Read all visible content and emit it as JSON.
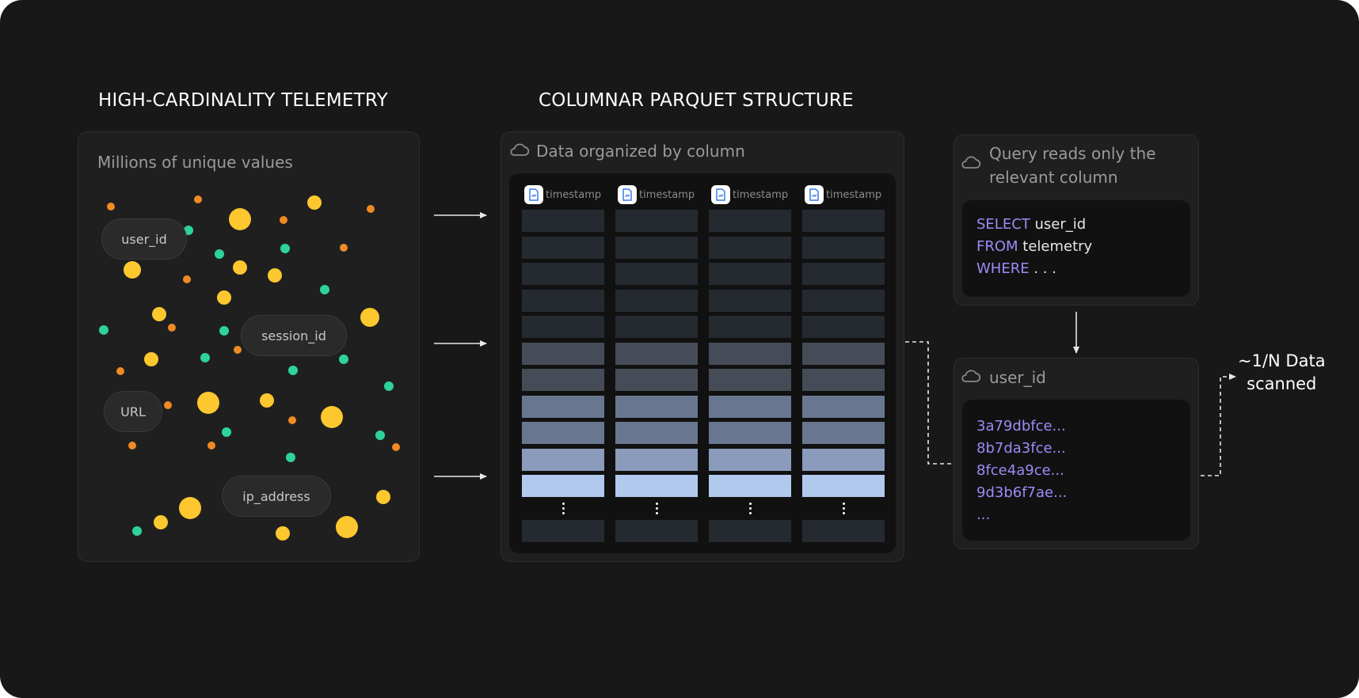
{
  "headings": {
    "left": "HIGH-CARDINALITY TELEMETRY",
    "middle": "COLUMNAR PARQUET STRUCTURE"
  },
  "telemetry_panel": {
    "title": "Millions of unique values",
    "fields": [
      "user_id",
      "session_id",
      "URL",
      "ip_address"
    ]
  },
  "parquet_panel": {
    "title": "Data organized by column",
    "icon": "cloud-icon",
    "columns": [
      "timestamp",
      "timestamp",
      "timestamp",
      "timestamp"
    ]
  },
  "query_panel": {
    "title_line1": "Query reads only the",
    "title_line2": "relevant column",
    "icon": "cloud-icon",
    "code": [
      {
        "keyword": "SELECT",
        "text": " user_id"
      },
      {
        "keyword": "FROM",
        "text": " telemetry"
      },
      {
        "keyword": "WHERE",
        "text": " . . ."
      }
    ]
  },
  "column_panel": {
    "title": "user_id",
    "icon": "cloud-icon",
    "values": [
      "3a79dbfce...",
      "8b7da3fce...",
      "8fce4a9ce...",
      "9d3b6f7ae...",
      "..."
    ]
  },
  "result": {
    "line1": "~1/N Data",
    "line2": "scanned"
  },
  "colors": {
    "background": "#181818",
    "accent_purple": "#9b8cf6",
    "dot_yellow": "#fdc72f",
    "dot_green": "#2ed39a",
    "dot_orange": "#f08a24"
  }
}
